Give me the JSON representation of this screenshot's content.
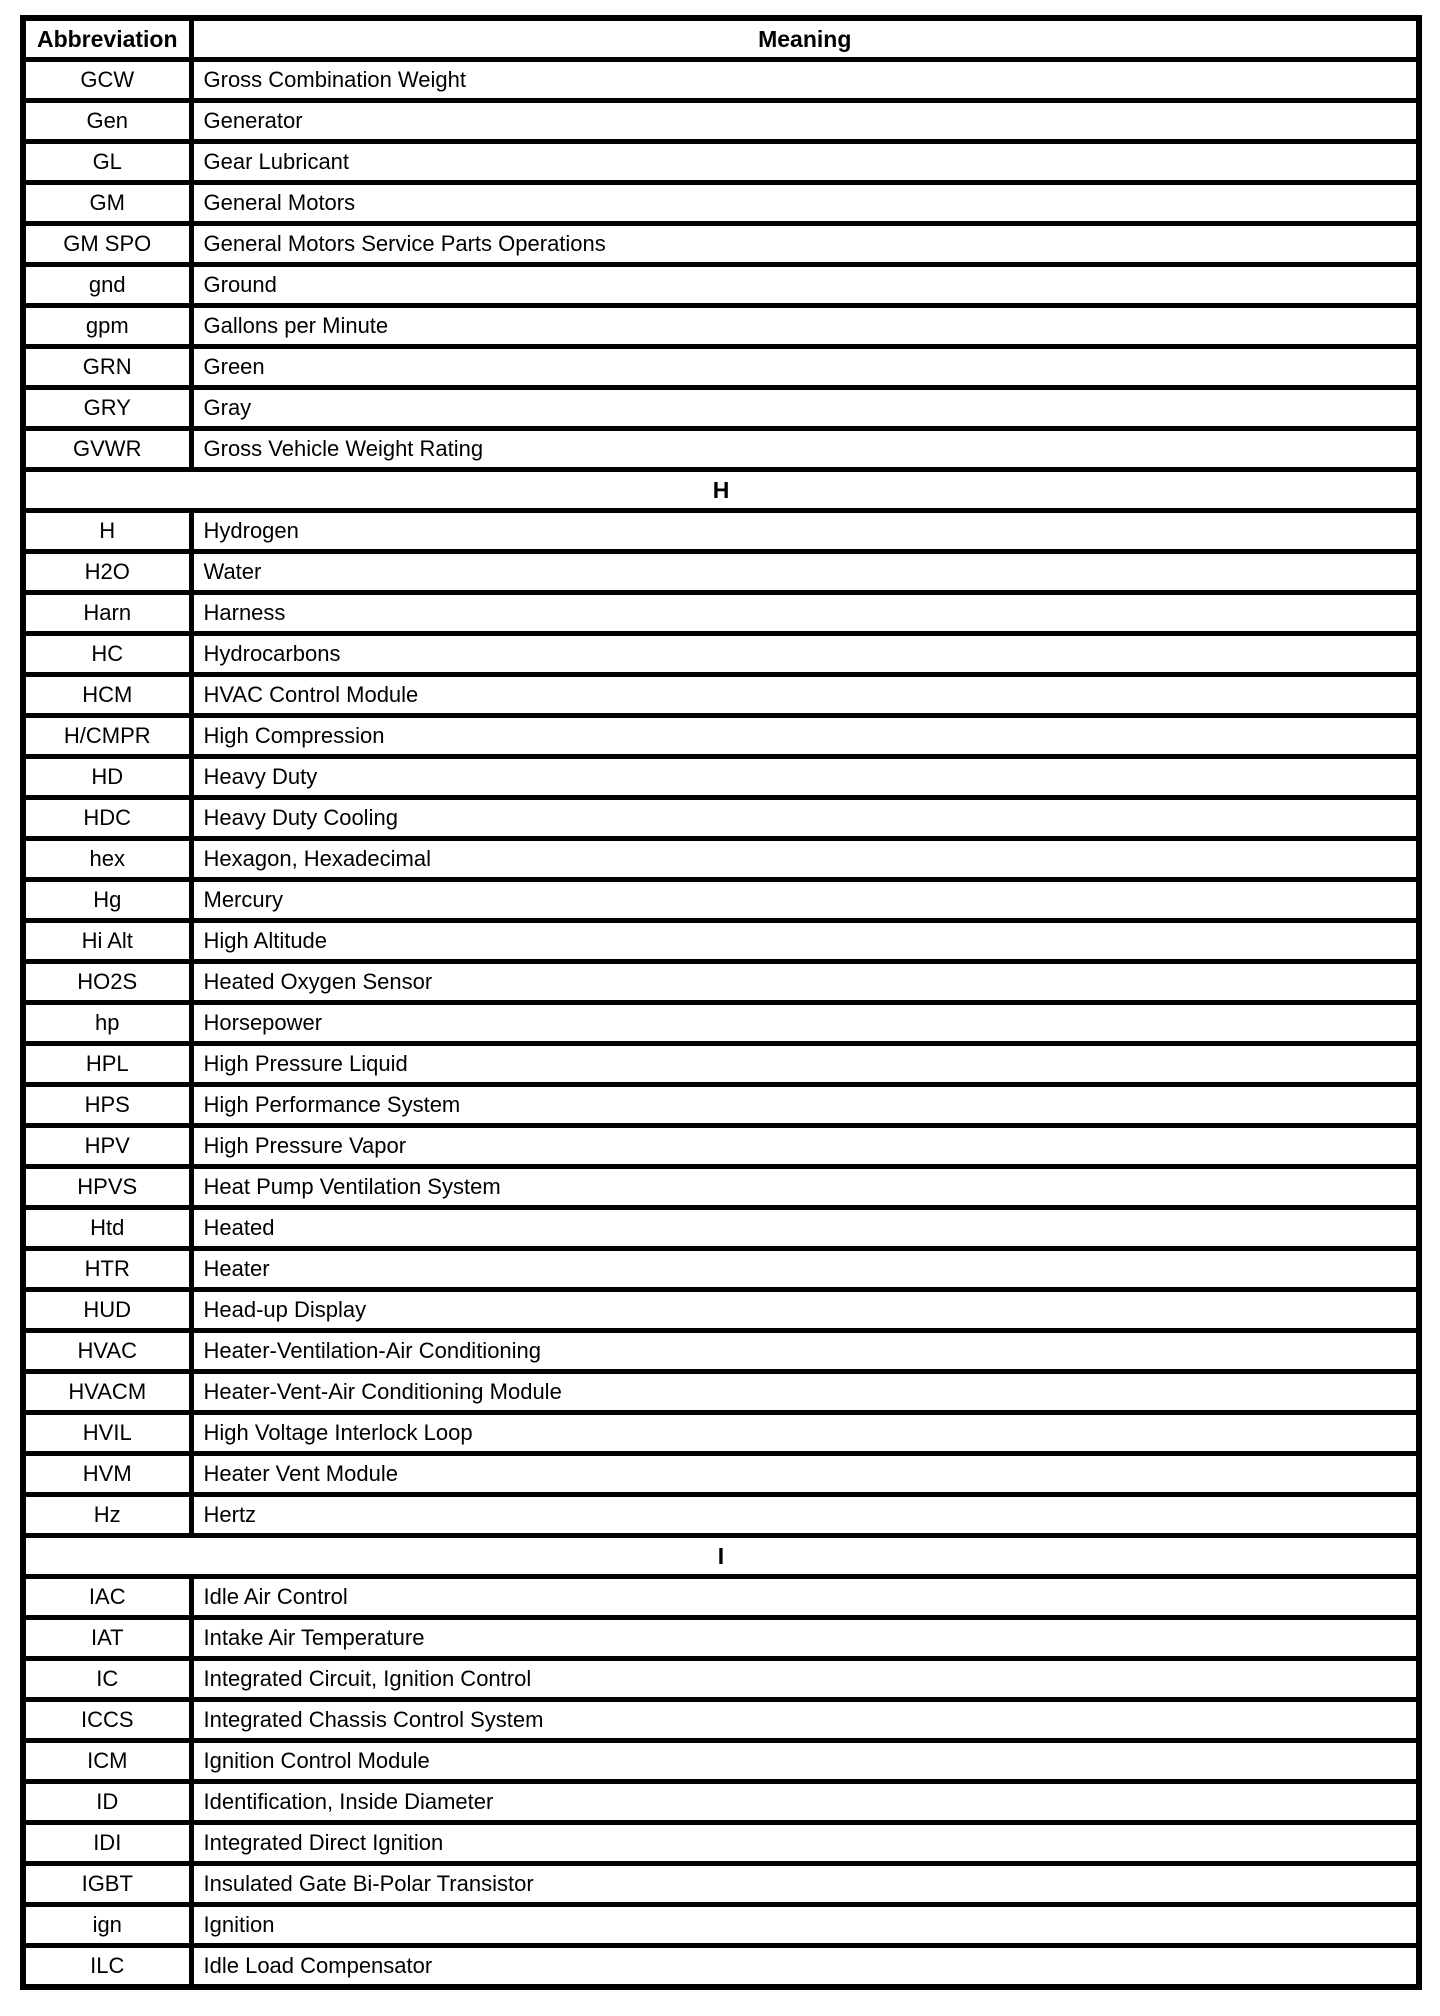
{
  "colors": {
    "background": "#ffffff",
    "border": "#000000",
    "text": "#000000"
  },
  "table": {
    "columns": [
      "Abbreviation",
      "Meaning"
    ],
    "sections": [
      {
        "letter": null,
        "rows": [
          {
            "abbr": "GCW",
            "meaning": "Gross Combination Weight"
          },
          {
            "abbr": "Gen",
            "meaning": "Generator"
          },
          {
            "abbr": "GL",
            "meaning": "Gear Lubricant"
          },
          {
            "abbr": "GM",
            "meaning": "General Motors"
          },
          {
            "abbr": "GM SPO",
            "meaning": "General Motors Service Parts Operations"
          },
          {
            "abbr": "gnd",
            "meaning": "Ground"
          },
          {
            "abbr": "gpm",
            "meaning": "Gallons per Minute"
          },
          {
            "abbr": "GRN",
            "meaning": "Green"
          },
          {
            "abbr": "GRY",
            "meaning": "Gray"
          },
          {
            "abbr": "GVWR",
            "meaning": "Gross Vehicle Weight Rating"
          }
        ]
      },
      {
        "letter": "H",
        "rows": [
          {
            "abbr": "H",
            "meaning": "Hydrogen"
          },
          {
            "abbr": "H2O",
            "meaning": "Water"
          },
          {
            "abbr": "Harn",
            "meaning": "Harness"
          },
          {
            "abbr": "HC",
            "meaning": "Hydrocarbons"
          },
          {
            "abbr": "HCM",
            "meaning": "HVAC Control Module"
          },
          {
            "abbr": "H/CMPR",
            "meaning": "High Compression"
          },
          {
            "abbr": "HD",
            "meaning": "Heavy Duty"
          },
          {
            "abbr": "HDC",
            "meaning": "Heavy Duty Cooling"
          },
          {
            "abbr": "hex",
            "meaning": "Hexagon, Hexadecimal"
          },
          {
            "abbr": "Hg",
            "meaning": "Mercury"
          },
          {
            "abbr": "Hi Alt",
            "meaning": "High Altitude"
          },
          {
            "abbr": "HO2S",
            "meaning": "Heated Oxygen Sensor"
          },
          {
            "abbr": "hp",
            "meaning": "Horsepower"
          },
          {
            "abbr": "HPL",
            "meaning": "High Pressure Liquid"
          },
          {
            "abbr": "HPS",
            "meaning": "High Performance System"
          },
          {
            "abbr": "HPV",
            "meaning": "High Pressure Vapor"
          },
          {
            "abbr": "HPVS",
            "meaning": "Heat Pump Ventilation System"
          },
          {
            "abbr": "Htd",
            "meaning": "Heated"
          },
          {
            "abbr": "HTR",
            "meaning": "Heater"
          },
          {
            "abbr": "HUD",
            "meaning": "Head-up Display"
          },
          {
            "abbr": "HVAC",
            "meaning": "Heater-Ventilation-Air Conditioning"
          },
          {
            "abbr": "HVACM",
            "meaning": "Heater-Vent-Air Conditioning Module"
          },
          {
            "abbr": "HVIL",
            "meaning": "High Voltage Interlock Loop"
          },
          {
            "abbr": "HVM",
            "meaning": "Heater Vent Module"
          },
          {
            "abbr": "Hz",
            "meaning": "Hertz"
          }
        ]
      },
      {
        "letter": "I",
        "rows": [
          {
            "abbr": "IAC",
            "meaning": "Idle Air Control"
          },
          {
            "abbr": "IAT",
            "meaning": "Intake Air Temperature"
          },
          {
            "abbr": "IC",
            "meaning": "Integrated Circuit, Ignition Control"
          },
          {
            "abbr": "ICCS",
            "meaning": "Integrated Chassis Control System"
          },
          {
            "abbr": "ICM",
            "meaning": "Ignition Control Module"
          },
          {
            "abbr": "ID",
            "meaning": "Identification, Inside Diameter"
          },
          {
            "abbr": "IDI",
            "meaning": "Integrated Direct Ignition"
          },
          {
            "abbr": "IGBT",
            "meaning": "Insulated Gate Bi-Polar Transistor"
          },
          {
            "abbr": "ign",
            "meaning": "Ignition"
          },
          {
            "abbr": "ILC",
            "meaning": "Idle Load Compensator"
          }
        ]
      }
    ]
  }
}
